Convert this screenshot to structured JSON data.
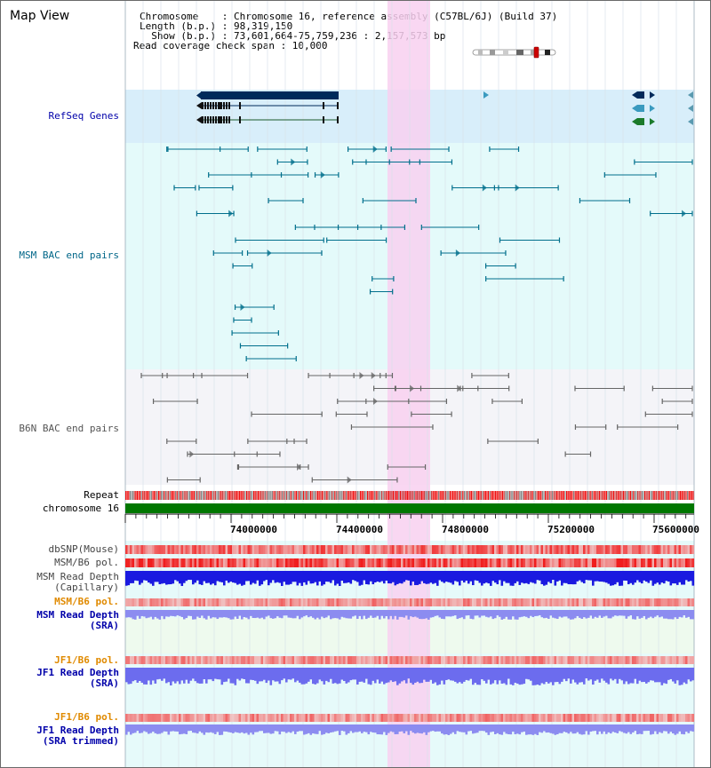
{
  "header": {
    "title": "Map View",
    "info_lines": [
      "Chromosome    : Chromosome 16, reference assembly (C57BL/6J) (Build 37)",
      "Length (b.p.) : 98,319,150",
      "  Show (b.p.) : 73,601,664-75,759,236 : 2,157,573 bp",
      "Read coverage check span : 10,000"
    ]
  },
  "tracks": {
    "refseq": {
      "label": "RefSeq Genes",
      "color": "#0000aa"
    },
    "msm_bac": {
      "label": "MSM BAC end pairs",
      "color": "#006688"
    },
    "b6n_bac": {
      "label": "B6N BAC end pairs",
      "color": "#555555"
    },
    "repeat": {
      "label": "Repeat",
      "color": "#000000"
    },
    "chromosome": {
      "label": "chromosome 16",
      "color": "#000000"
    },
    "dbsnp": {
      "label": "dbSNP(Mouse)",
      "color": "#444444"
    },
    "msm_b6_pol": {
      "label": "MSM/B6 pol.",
      "color": "#444444"
    },
    "msm_depth_cap": {
      "label": "MSM Read Depth\n(Capillary)",
      "color": "#444444"
    },
    "msm_b6_pol_sra": {
      "label": "MSM/B6 pol.",
      "color": "#e08a00"
    },
    "msm_depth_sra": {
      "label": "MSM Read Depth\n(SRA)",
      "color": "#0000aa"
    },
    "jf1_b6_pol": {
      "label": "JF1/B6 pol.",
      "color": "#e08a00"
    },
    "jf1_depth_sra": {
      "label": "JF1 Read Depth\n(SRA)",
      "color": "#0000aa"
    },
    "jf1_b6_pol_trim": {
      "label": "JF1/B6 pol.",
      "color": "#e08a00"
    },
    "jf1_depth_trim": {
      "label": "JF1 Read Depth\n(SRA trimmed)",
      "color": "#0000aa"
    }
  },
  "axis": {
    "ticks": [
      "74000000",
      "74400000",
      "74800000",
      "75200000",
      "75600000"
    ]
  },
  "colors": {
    "highlight": "#f8d0f0",
    "refseq_bg": "#d8eefa",
    "msm_bg": "#e4fafa",
    "b6n_bg": "#f4f4f8",
    "gene_dark": "#002a5a",
    "gene_teal": "#3a9abf",
    "gene_green": "#1a7a2a",
    "chromosome_bar": "#007700",
    "depth_blue": "#1a1ae0",
    "depth_light": "#8c8cf0",
    "pol_red": "#f02020"
  }
}
